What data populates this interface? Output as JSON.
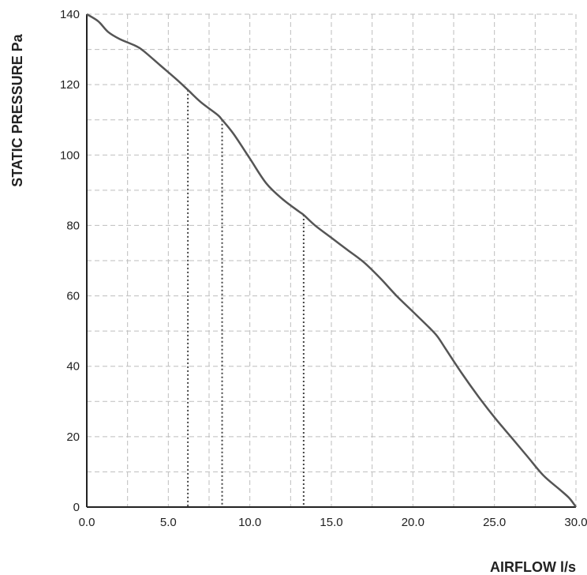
{
  "chart_data": {
    "type": "line",
    "xlabel": "AIRFLOW l/s",
    "ylabel": "STATIC PRESSURE Pa",
    "xlim": [
      0,
      30
    ],
    "ylim": [
      0,
      140
    ],
    "x_ticks": [
      "0.0",
      "5.0",
      "10.0",
      "15.0",
      "20.0",
      "25.0",
      "30.0"
    ],
    "x_tick_values": [
      0,
      5,
      10,
      15,
      20,
      25,
      30
    ],
    "y_ticks": [
      "0",
      "20",
      "40",
      "60",
      "80",
      "100",
      "120",
      "140"
    ],
    "y_tick_values": [
      0,
      20,
      40,
      60,
      80,
      100,
      120,
      140
    ],
    "x_minor_gridlines": [
      2.5,
      7.5,
      12.5,
      17.5,
      22.5,
      27.5
    ],
    "y_minor_gridlines": [
      10,
      30,
      50,
      70,
      90,
      110,
      130
    ],
    "grid": true,
    "series": [
      {
        "x": [
          0,
          0.7,
          1.3,
          2.0,
          3.0,
          3.5,
          4.5,
          5.5,
          6.2,
          7.0,
          8.0,
          8.3,
          9.0,
          10.0,
          11.0,
          12.0,
          13.0,
          13.3,
          14.0,
          15.0,
          16.0,
          17.0,
          18.0,
          19.0,
          20.0,
          21.0,
          21.5,
          22.0,
          23.0,
          24.0,
          25.0,
          26.0,
          27.0,
          28.0,
          29.0,
          29.6,
          30.0
        ],
        "y": [
          140,
          138,
          135,
          133,
          131,
          129.5,
          125.5,
          121.5,
          118.5,
          115,
          111.5,
          110,
          106,
          99,
          92,
          87.5,
          84,
          83,
          80,
          76.5,
          73,
          69.5,
          65,
          60,
          55.5,
          51,
          48.5,
          45,
          38,
          31.5,
          25.5,
          20,
          14.5,
          9,
          5,
          2.5,
          0
        ]
      }
    ],
    "drop_lines": [
      {
        "x": 6.2,
        "y": 118.5
      },
      {
        "x": 8.3,
        "y": 110
      },
      {
        "x": 13.3,
        "y": 83
      }
    ],
    "colors": {
      "curve": "#555555",
      "axis": "#222222",
      "grid": "#bdbdbd",
      "drop_line": "#444444"
    }
  }
}
